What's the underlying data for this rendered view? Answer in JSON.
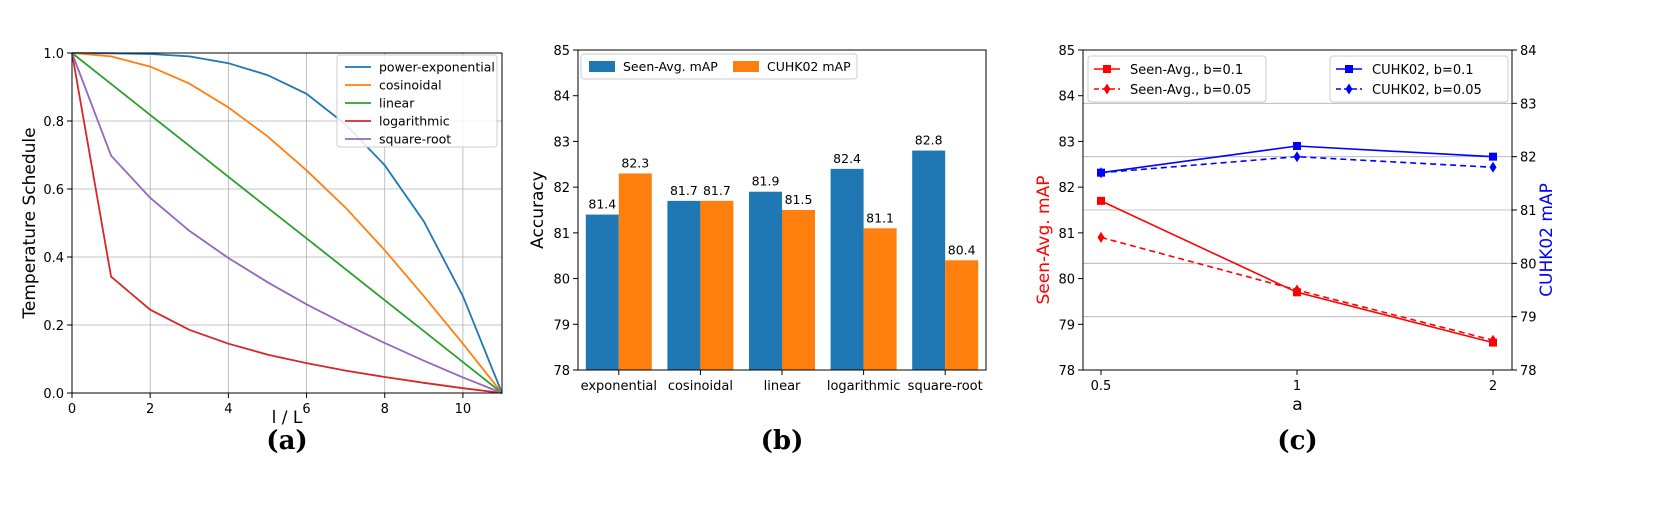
{
  "chart_data": [
    {
      "type": "line",
      "id": "a",
      "panel_label": "(a)",
      "xlabel": "l / L",
      "ylabel": "Temperature Schedule",
      "xlim": [
        0,
        11
      ],
      "ylim": [
        0,
        1.0
      ],
      "xticks": [
        0,
        2,
        4,
        6,
        8,
        10
      ],
      "yticks": [
        0.0,
        0.2,
        0.4,
        0.6,
        0.8,
        1.0
      ],
      "xtick_labels": [
        "0",
        "2",
        "4",
        "6",
        "8",
        "10"
      ],
      "ytick_labels": [
        "0.0",
        "0.2",
        "0.4",
        "0.6",
        "0.8",
        "1.0"
      ],
      "grid": true,
      "legend_position": "top-right",
      "x": [
        0,
        1,
        2,
        3,
        4,
        5,
        6,
        7,
        8,
        9,
        10,
        11
      ],
      "series": [
        {
          "name": "power-exponential",
          "color": "#1f77b4",
          "values": [
            1.0,
            0.999,
            0.997,
            0.99,
            0.97,
            0.935,
            0.88,
            0.79,
            0.67,
            0.505,
            0.285,
            0.0
          ]
        },
        {
          "name": "cosinoidal",
          "color": "#ff7f0e",
          "values": [
            1.0,
            0.99,
            0.96,
            0.91,
            0.84,
            0.755,
            0.655,
            0.545,
            0.42,
            0.285,
            0.145,
            0.0
          ]
        },
        {
          "name": "linear",
          "color": "#2ca02c",
          "values": [
            1.0,
            0.909,
            0.818,
            0.727,
            0.636,
            0.545,
            0.455,
            0.364,
            0.273,
            0.182,
            0.091,
            0.0
          ]
        },
        {
          "name": "logarithmic",
          "color": "#d62728",
          "values": [
            1.0,
            0.342,
            0.245,
            0.186,
            0.145,
            0.113,
            0.088,
            0.066,
            0.047,
            0.03,
            0.014,
            0.0
          ]
        },
        {
          "name": "square-root",
          "color": "#9467bd",
          "values": [
            1.0,
            0.698,
            0.574,
            0.477,
            0.397,
            0.326,
            0.261,
            0.202,
            0.147,
            0.095,
            0.046,
            0.0
          ]
        }
      ]
    },
    {
      "type": "bar",
      "id": "b",
      "panel_label": "(b)",
      "xlabel": "",
      "ylabel": "Accuracy",
      "ylim": [
        78,
        85
      ],
      "yticks": [
        78,
        79,
        80,
        81,
        82,
        83,
        84,
        85
      ],
      "ytick_labels": [
        "78",
        "79",
        "80",
        "81",
        "82",
        "83",
        "84",
        "85"
      ],
      "grid": false,
      "legend_position": "top-left",
      "categories": [
        "exponential",
        "cosinoidal",
        "linear",
        "logarithmic",
        "square-root"
      ],
      "series": [
        {
          "name": "Seen-Avg. mAP",
          "color": "#1f77b4",
          "values": [
            81.4,
            81.7,
            81.9,
            82.4,
            82.8
          ],
          "labels": [
            "81.4",
            "81.7",
            "81.9",
            "82.4",
            "82.8"
          ]
        },
        {
          "name": "CUHK02 mAP",
          "color": "#ff7f0e",
          "values": [
            82.3,
            81.7,
            81.5,
            81.1,
            80.4
          ],
          "labels": [
            "82.3",
            "81.7",
            "81.5",
            "81.1",
            "80.4"
          ]
        }
      ]
    },
    {
      "type": "line",
      "id": "c",
      "panel_label": "(c)",
      "xlabel": "a",
      "ylabel": "Seen-Avg. mAP",
      "ylabel_color": "#ff0000",
      "y2label": "CUHK02 mAP",
      "y2label_color": "#0000ff",
      "categories": [
        "0.5",
        "1",
        "2"
      ],
      "ylim": [
        78,
        85
      ],
      "y2lim": [
        78,
        84
      ],
      "yticks": [
        78,
        79,
        80,
        81,
        82,
        83,
        84,
        85
      ],
      "ytick_labels": [
        "78",
        "79",
        "80",
        "81",
        "82",
        "83",
        "84",
        "85"
      ],
      "y2ticks": [
        78,
        79,
        80,
        81,
        82,
        83,
        84
      ],
      "y2tick_labels": [
        "78",
        "79",
        "80",
        "81",
        "82",
        "83",
        "84"
      ],
      "grid": "horizontal",
      "series": [
        {
          "name": "Seen-Avg., b=0.1",
          "axis": "left",
          "color": "#ff0000",
          "marker": "square",
          "dash": "solid",
          "values": [
            81.7,
            79.7,
            78.6
          ]
        },
        {
          "name": "Seen-Avg., b=0.05",
          "axis": "left",
          "color": "#ff0000",
          "marker": "diamond",
          "dash": "dashed",
          "values": [
            80.9,
            79.75,
            78.65
          ]
        },
        {
          "name": "CUHK02, b=0.1",
          "axis": "right",
          "color": "#0000ff",
          "marker": "square",
          "dash": "solid",
          "values": [
            81.7,
            82.2,
            82.0
          ]
        },
        {
          "name": "CUHK02, b=0.05",
          "axis": "right",
          "color": "#0000ff",
          "marker": "diamond",
          "dash": "dashed",
          "values": [
            81.7,
            82.0,
            81.8
          ]
        }
      ]
    }
  ]
}
